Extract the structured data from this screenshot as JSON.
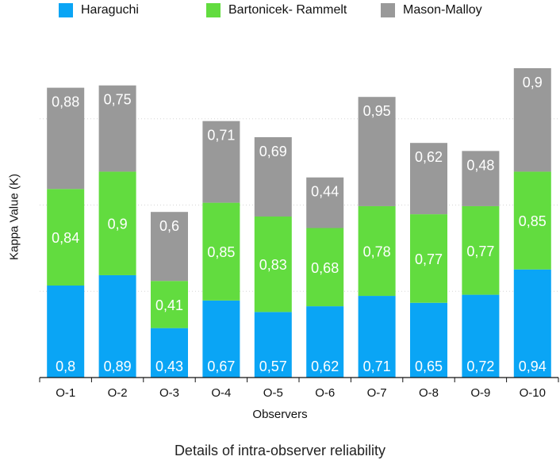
{
  "chart_data": {
    "type": "bar",
    "stacked": true,
    "title": "",
    "xlabel": "Observers",
    "ylabel": "Kappa Value (K)",
    "caption": "Details of intra-observer reliability",
    "categories": [
      "O-1",
      "O-2",
      "O-3",
      "O-4",
      "O-5",
      "O-6",
      "O-7",
      "O-8",
      "O-9",
      "O-10"
    ],
    "series": [
      {
        "name": "Haraguchi",
        "color": "#0AA5F5",
        "values": [
          0.8,
          0.89,
          0.43,
          0.67,
          0.57,
          0.62,
          0.71,
          0.65,
          0.72,
          0.94
        ],
        "labels": [
          "0,8",
          "0,89",
          "0,43",
          "0,67",
          "0,57",
          "0,62",
          "0,71",
          "0,65",
          "0,72",
          "0,94"
        ]
      },
      {
        "name": "Bartonicek- Rammelt",
        "color": "#62DC3F",
        "values": [
          0.84,
          0.9,
          0.41,
          0.85,
          0.83,
          0.68,
          0.78,
          0.77,
          0.77,
          0.85
        ],
        "labels": [
          "0,84",
          "0,9",
          "0,41",
          "0,85",
          "0,83",
          "0,68",
          "0,78",
          "0,77",
          "0,77",
          "0,85"
        ]
      },
      {
        "name": "Mason-Malloy",
        "color": "#999999",
        "values": [
          0.88,
          0.75,
          0.6,
          0.71,
          0.69,
          0.44,
          0.95,
          0.62,
          0.48,
          0.9
        ],
        "labels": [
          "0,88",
          "0,75",
          "0,6",
          "0,71",
          "0,69",
          "0,44",
          "0,95",
          "0,62",
          "0,48",
          "0,9"
        ]
      }
    ],
    "ylim": [
      0,
      3
    ],
    "gridlines": [
      0.75,
      1.5,
      2.25
    ],
    "grid": true,
    "legend_position": "top"
  }
}
